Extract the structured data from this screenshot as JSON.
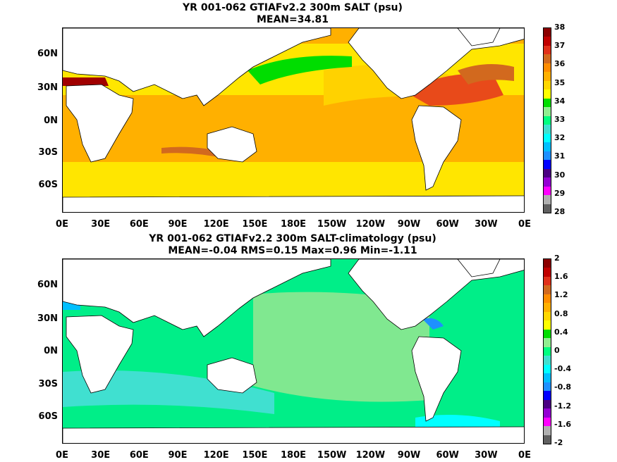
{
  "panels": [
    {
      "title_line1": "YR 001-062 GTIAFv2.2 300m SALT (psu)",
      "title_line2": "MEAN=34.81",
      "lat_labels": [
        "60N",
        "30N",
        "0N",
        "30S",
        "60S"
      ],
      "lon_labels": [
        "0E",
        "30E",
        "60E",
        "90E",
        "120E",
        "150E",
        "180E",
        "150W",
        "120W",
        "90W",
        "60W",
        "30W",
        "0E"
      ],
      "colorbar": {
        "labels": [
          "38",
          "37",
          "36",
          "35",
          "34",
          "33",
          "32",
          "31",
          "30",
          "29",
          "28"
        ],
        "colors": [
          "#8b0000",
          "#c00000",
          "#e0301a",
          "#d2691e",
          "#ff8c00",
          "#ffb000",
          "#ffd700",
          "#ffff00",
          "#00dd00",
          "#90ee90",
          "#00ff7f",
          "#40e0d0",
          "#00ffff",
          "#00bfff",
          "#1e90ff",
          "#0000ff",
          "#4b0082",
          "#9400d3",
          "#ff00ff",
          "#b0b0b0",
          "#606060"
        ]
      }
    },
    {
      "title_line1": "YR 001-062 GTIAFv2.2 300m SALT-climatology (psu)",
      "title_line2": "MEAN=-0.04   RMS=0.15   Max=0.96   Min=-1.11",
      "lat_labels": [
        "60N",
        "30N",
        "0N",
        "30S",
        "60S"
      ],
      "lon_labels": [
        "0E",
        "30E",
        "60E",
        "90E",
        "120E",
        "150E",
        "180E",
        "150W",
        "120W",
        "90W",
        "60W",
        "30W",
        "0E"
      ],
      "colorbar": {
        "labels": [
          "2",
          "1.6",
          "1.2",
          "0.8",
          "0.4",
          "0",
          "-0.4",
          "-0.8",
          "-1.2",
          "-1.6",
          "-2"
        ],
        "colors": [
          "#8b0000",
          "#c00000",
          "#e0301a",
          "#d2691e",
          "#ff8c00",
          "#ffb000",
          "#ffd700",
          "#ffff00",
          "#00dd00",
          "#90ee90",
          "#00ff7f",
          "#40e0d0",
          "#00ffff",
          "#00bfff",
          "#1e90ff",
          "#0000ff",
          "#4b0082",
          "#9400d3",
          "#ff00ff",
          "#b0b0b0",
          "#606060"
        ]
      }
    }
  ]
}
